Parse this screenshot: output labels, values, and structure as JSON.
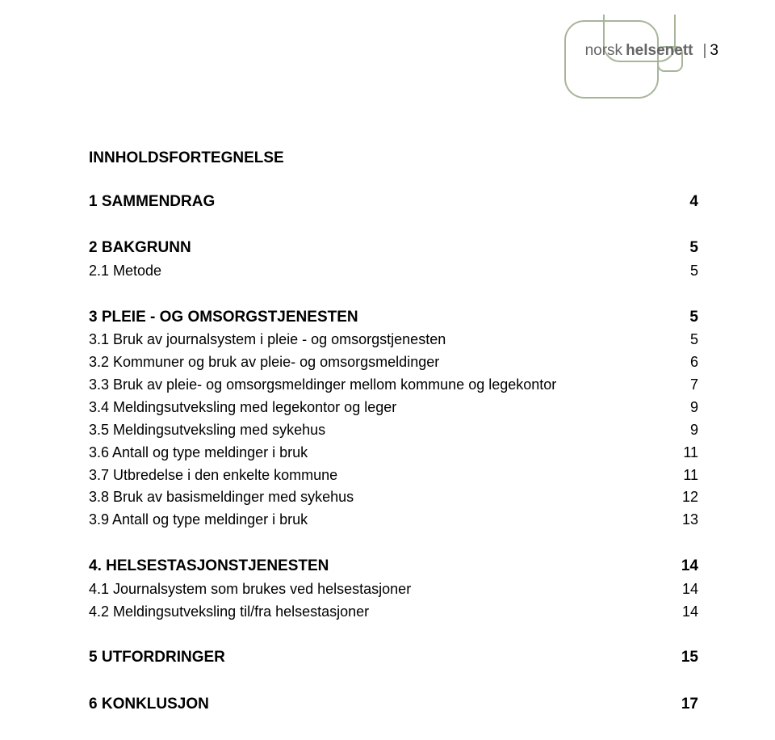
{
  "brand": {
    "light": "norsk",
    "bold": "helsenett"
  },
  "page_number": "3",
  "toc_title": "INNHOLDSFORTEGNELSE",
  "sections": [
    {
      "bold": true,
      "items": [
        {
          "label": "1 SAMMENDRAG",
          "page": "4",
          "bold": true
        }
      ]
    },
    {
      "items": [
        {
          "label": "2 BAKGRUNN",
          "page": "5",
          "bold": true
        },
        {
          "label": "2.1 Metode",
          "page": "5"
        }
      ]
    },
    {
      "items": [
        {
          "label": "3 PLEIE - OG OMSORGSTJENESTEN",
          "page": "5",
          "bold": true
        },
        {
          "label": "3.1 Bruk av journalsystem i pleie - og omsorgstjenesten",
          "page": "5"
        },
        {
          "label": "3.2 Kommuner og bruk av pleie- og omsorgsmeldinger",
          "page": "6"
        },
        {
          "label": "3.3 Bruk av pleie- og omsorgsmeldinger mellom kommune og legekontor",
          "page": "7"
        },
        {
          "label": "3.4 Meldingsutveksling med legekontor og leger",
          "page": "9"
        },
        {
          "label": "3.5 Meldingsutveksling med sykehus",
          "page": "9"
        },
        {
          "label": "3.6 Antall og type meldinger i bruk",
          "page": "11"
        },
        {
          "label": "3.7 Utbredelse i den enkelte kommune",
          "page": "11"
        },
        {
          "label": "3.8 Bruk av basismeldinger med sykehus",
          "page": "12"
        },
        {
          "label": "3.9 Antall og type meldinger i bruk",
          "page": "13"
        }
      ]
    },
    {
      "items": [
        {
          "label": "4. HELSESTASJONSTJENESTEN",
          "page": "14",
          "bold": true
        },
        {
          "label": "4.1 Journalsystem som brukes ved helsestasjoner",
          "page": "14"
        },
        {
          "label": "4.2 Meldingsutveksling til/fra helsestasjoner",
          "page": "14"
        }
      ]
    },
    {
      "items": [
        {
          "label": "5 UTFORDRINGER",
          "page": "15",
          "bold": true
        }
      ]
    },
    {
      "items": [
        {
          "label": "6 KONKLUSJON",
          "page": "17",
          "bold": true
        }
      ]
    }
  ],
  "decor": {
    "stroke": "#a7b59a",
    "stroke_width": 2
  }
}
